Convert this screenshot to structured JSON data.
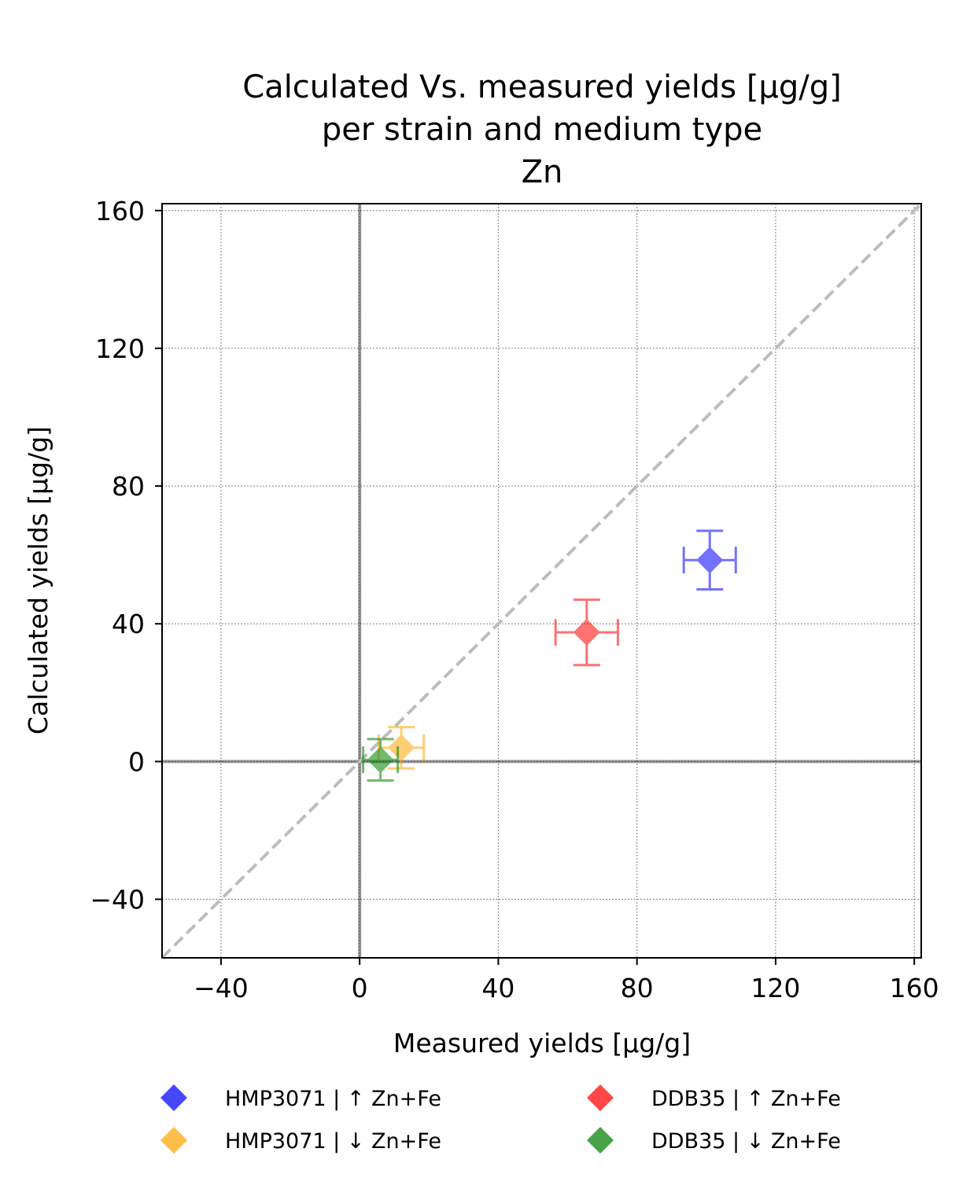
{
  "chart_data": {
    "type": "scatter",
    "title_lines": [
      "Calculated Vs. measured yields [µg/g]",
      "per strain and medium type",
      "Zn"
    ],
    "xlabel": "Measured yields [µg/g]",
    "ylabel": "Calculated yields [µg/g]",
    "xlim": [
      -57,
      162
    ],
    "ylim": [
      -57,
      162
    ],
    "x_ticks": [
      -40,
      0,
      40,
      80,
      120,
      160
    ],
    "y_ticks": [
      -40,
      0,
      40,
      80,
      120,
      160
    ],
    "x_tick_labels": [
      "−40",
      "0",
      "40",
      "80",
      "120",
      "160"
    ],
    "y_tick_labels": [
      "−40",
      "0",
      "40",
      "80",
      "120",
      "160"
    ],
    "grid": true,
    "reference_line": "y = x (dashed gray)",
    "legend_position": "bottom",
    "series": [
      {
        "name": "HMP3071  |  ↑ Zn+Fe",
        "color": "#0000ff",
        "x": 101,
        "y": 58.5,
        "x_err": 7.5,
        "y_err": 8.5
      },
      {
        "name": "HMP3071  |  ↓ Zn+Fe",
        "color": "#ffa500",
        "x": 12,
        "y": 4,
        "x_err": 6.5,
        "y_err": 6
      },
      {
        "name": "DDB35  |  ↑ Zn+Fe",
        "color": "#ff0000",
        "x": 65.5,
        "y": 37.5,
        "x_err": 9,
        "y_err": 9.5
      },
      {
        "name": "DDB35  |  ↓ Zn+Fe",
        "color": "#008000",
        "x": 6,
        "y": 0.5,
        "x_err": 5,
        "y_err": 6
      }
    ]
  }
}
